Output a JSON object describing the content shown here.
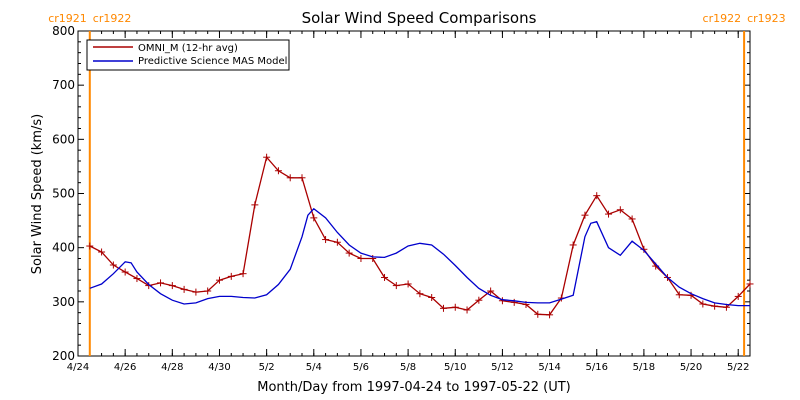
{
  "chart_data": {
    "type": "line",
    "title": "Solar Wind Speed Comparisons",
    "xlabel": "Month/Day from 1997-04-24 to 1997-05-22 (UT)",
    "ylabel": "Solar Wind Speed (km/s)",
    "x_unit": "date (1997)",
    "xlim": [
      "1997-04-24",
      "1997-05-22T12:00"
    ],
    "ylim": [
      200,
      800
    ],
    "yticks": [
      200,
      300,
      400,
      500,
      600,
      700,
      800
    ],
    "y_tick_labels": [
      "200",
      "300",
      "400",
      "500",
      "600",
      "700",
      "800"
    ],
    "xticks": [
      "1997-04-24",
      "1997-04-26",
      "1997-04-28",
      "1997-04-30",
      "1997-05-02",
      "1997-05-04",
      "1997-05-06",
      "1997-05-08",
      "1997-05-10",
      "1997-05-12",
      "1997-05-14",
      "1997-05-16",
      "1997-05-18",
      "1997-05-20",
      "1997-05-22"
    ],
    "x_tick_labels": [
      "4/24",
      "4/26",
      "4/28",
      "4/30",
      "5/2",
      "5/4",
      "5/6",
      "5/8",
      "5/10",
      "5/12",
      "5/14",
      "5/16",
      "5/18",
      "5/20",
      "5/22"
    ],
    "grid": false,
    "legend": "top-left",
    "series": [
      {
        "name": "OMNI_M (12-hr avg)",
        "color": "#aa0000",
        "marker": "+",
        "x": [
          "1997-04-24T12:00",
          "1997-04-25T00:00",
          "1997-04-25T12:00",
          "1997-04-26T00:00",
          "1997-04-26T12:00",
          "1997-04-27T00:00",
          "1997-04-27T12:00",
          "1997-04-28T00:00",
          "1997-04-28T12:00",
          "1997-04-29T00:00",
          "1997-04-29T12:00",
          "1997-04-30T00:00",
          "1997-04-30T12:00",
          "1997-05-01T00:00",
          "1997-05-01T12:00",
          "1997-05-02T00:00",
          "1997-05-02T12:00",
          "1997-05-03T00:00",
          "1997-05-03T12:00",
          "1997-05-04T00:00",
          "1997-05-04T12:00",
          "1997-05-05T00:00",
          "1997-05-05T12:00",
          "1997-05-06T00:00",
          "1997-05-06T12:00",
          "1997-05-07T00:00",
          "1997-05-07T12:00",
          "1997-05-08T00:00",
          "1997-05-08T12:00",
          "1997-05-09T00:00",
          "1997-05-09T12:00",
          "1997-05-10T00:00",
          "1997-05-10T12:00",
          "1997-05-11T00:00",
          "1997-05-11T12:00",
          "1997-05-12T00:00",
          "1997-05-12T12:00",
          "1997-05-13T00:00",
          "1997-05-13T12:00",
          "1997-05-14T00:00",
          "1997-05-14T12:00",
          "1997-05-15T00:00",
          "1997-05-15T12:00",
          "1997-05-16T00:00",
          "1997-05-16T12:00",
          "1997-05-17T00:00",
          "1997-05-17T12:00",
          "1997-05-18T00:00",
          "1997-05-18T12:00",
          "1997-05-19T00:00",
          "1997-05-19T12:00",
          "1997-05-20T00:00",
          "1997-05-20T12:00",
          "1997-05-21T00:00",
          "1997-05-21T12:00",
          "1997-05-22T00:00",
          "1997-05-22T12:00"
        ],
        "y": [
          403,
          392,
          368,
          355,
          343,
          330,
          335,
          330,
          323,
          318,
          320,
          340,
          347,
          352,
          479,
          567,
          542,
          529,
          529,
          455,
          415,
          410,
          390,
          380,
          380,
          345,
          330,
          333,
          315,
          308,
          288,
          290,
          285,
          303,
          320,
          302,
          299,
          295,
          277,
          276,
          307,
          405,
          460,
          496,
          462,
          470,
          453,
          397,
          366,
          345,
          313,
          312,
          296,
          292,
          290,
          310,
          333
        ]
      },
      {
        "name": "Predictive Science MAS Model",
        "color": "#0000cc",
        "marker": "",
        "x": [
          "1997-04-24T12:00",
          "1997-04-25T00:00",
          "1997-04-25T12:00",
          "1997-04-26T00:00",
          "1997-04-26T06:00",
          "1997-04-26T12:00",
          "1997-04-27T00:00",
          "1997-04-27T12:00",
          "1997-04-28T00:00",
          "1997-04-28T12:00",
          "1997-04-29T00:00",
          "1997-04-29T12:00",
          "1997-04-30T00:00",
          "1997-04-30T12:00",
          "1997-05-01T00:00",
          "1997-05-01T12:00",
          "1997-05-02T00:00",
          "1997-05-02T12:00",
          "1997-05-03T00:00",
          "1997-05-03T12:00",
          "1997-05-03T18:00",
          "1997-05-04T00:00",
          "1997-05-04T12:00",
          "1997-05-05T00:00",
          "1997-05-05T12:00",
          "1997-05-06T00:00",
          "1997-05-06T12:00",
          "1997-05-07T00:00",
          "1997-05-07T12:00",
          "1997-05-08T00:00",
          "1997-05-08T12:00",
          "1997-05-09T00:00",
          "1997-05-09T12:00",
          "1997-05-10T00:00",
          "1997-05-10T12:00",
          "1997-05-11T00:00",
          "1997-05-11T12:00",
          "1997-05-12T00:00",
          "1997-05-12T12:00",
          "1997-05-13T00:00",
          "1997-05-13T12:00",
          "1997-05-14T00:00",
          "1997-05-14T12:00",
          "1997-05-15T00:00",
          "1997-05-15T12:00",
          "1997-05-15T18:00",
          "1997-05-16T00:00",
          "1997-05-16T12:00",
          "1997-05-17T00:00",
          "1997-05-17T12:00",
          "1997-05-18T00:00",
          "1997-05-18T12:00",
          "1997-05-19T00:00",
          "1997-05-19T12:00",
          "1997-05-20T00:00",
          "1997-05-20T12:00",
          "1997-05-21T00:00",
          "1997-05-21T12:00",
          "1997-05-22T00:00",
          "1997-05-22T12:00"
        ],
        "y": [
          325,
          333,
          352,
          374,
          372,
          355,
          332,
          315,
          303,
          296,
          298,
          306,
          310,
          310,
          308,
          307,
          313,
          332,
          360,
          420,
          460,
          472,
          455,
          428,
          405,
          390,
          383,
          382,
          390,
          403,
          408,
          405,
          388,
          367,
          345,
          325,
          312,
          304,
          302,
          299,
          298,
          298,
          305,
          312,
          420,
          445,
          448,
          400,
          386,
          412,
          395,
          370,
          345,
          327,
          315,
          306,
          298,
          295,
          293,
          293
        ]
      }
    ],
    "vertical_markers": [
      {
        "x": "1997-04-24T12:00",
        "color": "#ff8800",
        "label_left": "cr1921",
        "label_right": "cr1922"
      },
      {
        "x": "1997-05-22T06:00",
        "color": "#ff8800",
        "label_left": "cr1922",
        "label_right": "cr1923"
      }
    ]
  }
}
